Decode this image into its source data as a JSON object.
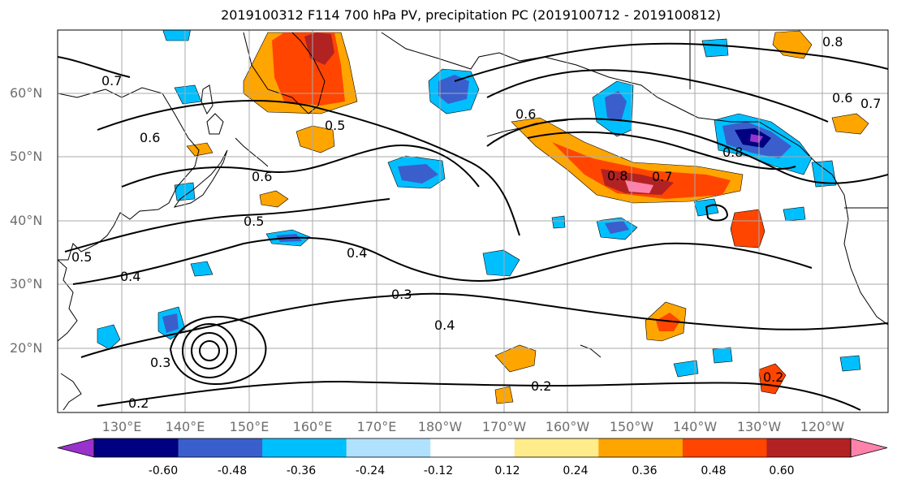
{
  "title": "2019100312 F114 700 hPa PV, precipitation PC (2019100712 - 2019100812)",
  "lat_labels": [
    "60°N",
    "50°N",
    "40°N",
    "30°N",
    "20°N"
  ],
  "lon_labels": [
    "130°E",
    "140°E",
    "150°E",
    "160°E",
    "170°E",
    "180°W",
    "170°W",
    "160°W",
    "150°W",
    "140°W",
    "130°W",
    "120°W"
  ],
  "colorbar": {
    "ticks": [
      "-0.60",
      "-0.48",
      "-0.36",
      "-0.24",
      "-0.12",
      "0.12",
      "0.24",
      "0.36",
      "0.48",
      "0.60"
    ],
    "colors": [
      "#9932cc",
      "#000080",
      "#3a5fcd",
      "#00bfff",
      "#b0e2ff",
      "#ffffff",
      "#ffec8b",
      "#ffa500",
      "#ff4500",
      "#b22222",
      "#ff82ab"
    ]
  },
  "contour_labels": [
    "0.7",
    "0.6",
    "0.5",
    "0.6",
    "0.5",
    "0.4",
    "0.5",
    "0.4",
    "0.3",
    "0.3",
    "0.2",
    "0.4",
    "0.2",
    "0.8",
    "0.7",
    "0.8",
    "0.8",
    "0.6",
    "0.6",
    "0.7",
    "0.2"
  ]
}
